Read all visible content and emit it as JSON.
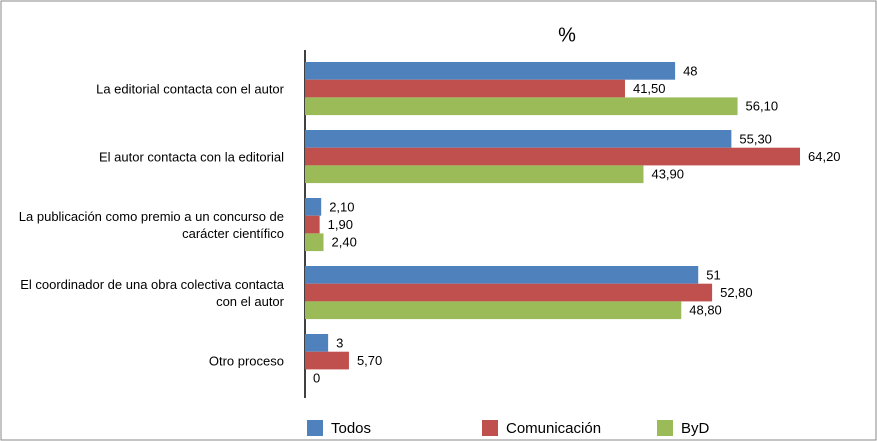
{
  "chart_data": {
    "type": "bar",
    "orientation": "horizontal",
    "title": "%",
    "categories": [
      "La editorial contacta con el autor",
      "El autor contacta con la editorial",
      "La publicación como premio a un concurso de carácter científico",
      "El coordinador de una obra colectiva contacta con el autor",
      "Otro proceso"
    ],
    "series": [
      {
        "name": "Todos",
        "color": "#4f81bd",
        "values": [
          48,
          55.3,
          2.1,
          51,
          3
        ],
        "value_labels": [
          "48",
          "55,30",
          "2,10",
          "51",
          "3"
        ]
      },
      {
        "name": "Comunicación",
        "color": "#c0504d",
        "values": [
          41.5,
          64.2,
          1.9,
          52.8,
          5.7
        ],
        "value_labels": [
          "41,50",
          "64,20",
          "1,90",
          "52,80",
          "5,70"
        ]
      },
      {
        "name": "ByD",
        "color": "#9bbb59",
        "values": [
          56.1,
          43.9,
          2.4,
          48.8,
          0
        ],
        "value_labels": [
          "56,10",
          "43,90",
          "2,40",
          "48,80",
          "0"
        ]
      }
    ],
    "legend": "bottom"
  }
}
